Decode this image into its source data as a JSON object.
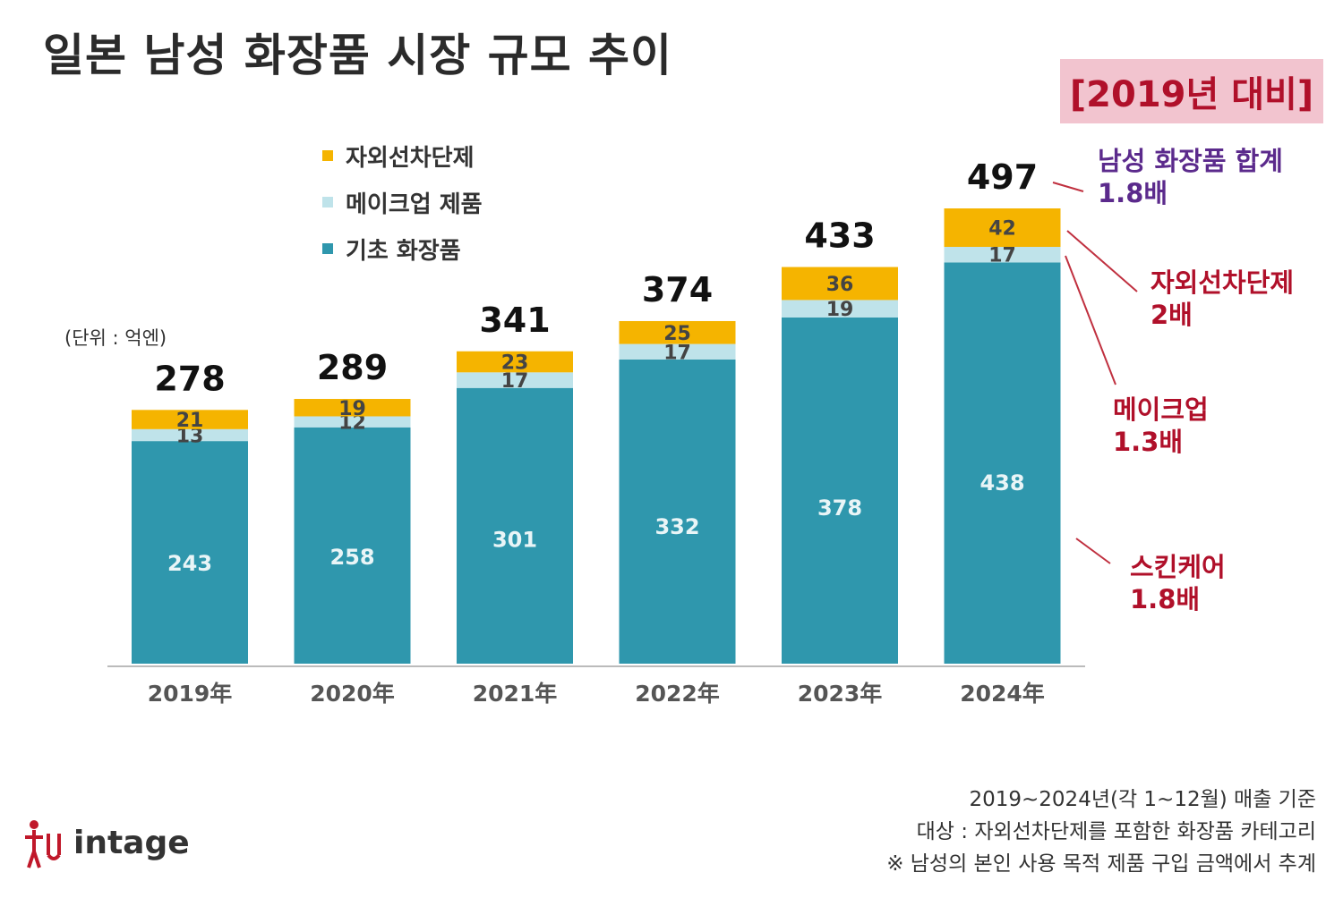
{
  "title": "일본 남성 화장품 시장 규모 추이",
  "compare_badge": "[2019년 대비]",
  "unit_note": "(단위 : 억엔)",
  "legend": [
    {
      "label": "자외선차단제",
      "color": "#f5b400"
    },
    {
      "label": "메이크업 제품",
      "color": "#bfe3ea"
    },
    {
      "label": "기초 화장품",
      "color": "#2f97ad"
    }
  ],
  "chart_data": {
    "type": "bar",
    "stacked": true,
    "categories": [
      "2019年",
      "2020年",
      "2021年",
      "2022年",
      "2023年",
      "2024年"
    ],
    "series": [
      {
        "name": "기초 화장품",
        "values": [
          243,
          258,
          301,
          332,
          378,
          438
        ],
        "color": "#2f97ad"
      },
      {
        "name": "메이크업 제품",
        "values": [
          13,
          12,
          17,
          17,
          19,
          17
        ],
        "color": "#bfe3ea"
      },
      {
        "name": "자외선차단제",
        "values": [
          21,
          19,
          23,
          25,
          36,
          42
        ],
        "color": "#f5b400"
      }
    ],
    "totals": [
      278,
      289,
      341,
      374,
      433,
      497
    ],
    "ylim": [
      0,
      497
    ],
    "grid": false
  },
  "annotations": [
    {
      "heading": "남성 화장품 합계",
      "value": "1.8배",
      "color": "#5b2a8c"
    },
    {
      "heading": "자외선차단제",
      "value": "2배",
      "color": "#b0102a"
    },
    {
      "heading": "메이크업",
      "value": "1.3배",
      "color": "#b0102a"
    },
    {
      "heading": "스킨케어",
      "value": "1.8배",
      "color": "#b0102a"
    }
  ],
  "source_lines": [
    "2019~2024년(각 1~12월) 매출 기준",
    "대상 : 자외선차단제를 포함한 화장품 카테고리",
    "※ 남성의 본인 사용 목적 제품 구입 금액에서 추계"
  ],
  "logo_text": "intage"
}
